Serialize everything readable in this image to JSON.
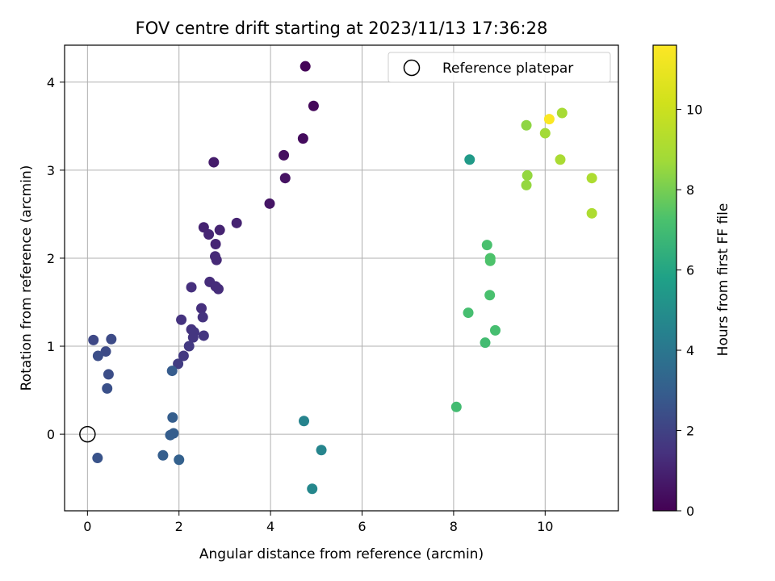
{
  "chart_data": {
    "type": "scatter",
    "title": "FOV centre drift starting at 2023/11/13 17:36:28",
    "xlabel": "Angular distance from reference (arcmin)",
    "ylabel": "Rotation from reference (arcmin)",
    "colorbar_label": "Hours from first FF file",
    "xlim": [
      -0.5,
      11.6
    ],
    "ylim": [
      -0.87,
      4.42
    ],
    "xticks": [
      0,
      2,
      4,
      6,
      8,
      10
    ],
    "yticks": [
      0,
      1,
      2,
      3,
      4
    ],
    "colorbar_range": [
      0,
      11.6
    ],
    "colorbar_ticks": [
      0,
      2,
      4,
      6,
      8,
      10
    ],
    "colormap": "viridis",
    "grid": true,
    "legend": {
      "label": "Reference platepar",
      "placement": "top-right"
    },
    "reference_point": {
      "x": 0,
      "y": 0
    },
    "points": [
      {
        "x": 4.76,
        "y": 4.18,
        "hours": 0.1
      },
      {
        "x": 4.94,
        "y": 3.73,
        "hours": 0.2
      },
      {
        "x": 4.71,
        "y": 3.36,
        "hours": 0.3
      },
      {
        "x": 4.29,
        "y": 3.17,
        "hours": 0.4
      },
      {
        "x": 4.32,
        "y": 2.91,
        "hours": 0.5
      },
      {
        "x": 3.98,
        "y": 2.62,
        "hours": 0.6
      },
      {
        "x": 2.76,
        "y": 3.09,
        "hours": 0.8
      },
      {
        "x": 3.26,
        "y": 2.4,
        "hours": 1.0
      },
      {
        "x": 2.54,
        "y": 2.35,
        "hours": 1.0
      },
      {
        "x": 2.89,
        "y": 2.32,
        "hours": 1.0
      },
      {
        "x": 2.65,
        "y": 2.27,
        "hours": 1.1
      },
      {
        "x": 2.8,
        "y": 2.16,
        "hours": 1.1
      },
      {
        "x": 2.79,
        "y": 2.02,
        "hours": 1.2
      },
      {
        "x": 2.82,
        "y": 1.98,
        "hours": 1.2
      },
      {
        "x": 2.67,
        "y": 1.73,
        "hours": 1.3
      },
      {
        "x": 2.8,
        "y": 1.68,
        "hours": 1.3
      },
      {
        "x": 2.86,
        "y": 1.65,
        "hours": 1.3
      },
      {
        "x": 2.27,
        "y": 1.67,
        "hours": 1.4
      },
      {
        "x": 2.49,
        "y": 1.43,
        "hours": 1.4
      },
      {
        "x": 2.52,
        "y": 1.33,
        "hours": 1.5
      },
      {
        "x": 2.05,
        "y": 1.3,
        "hours": 1.5
      },
      {
        "x": 2.27,
        "y": 1.19,
        "hours": 1.5
      },
      {
        "x": 2.33,
        "y": 1.16,
        "hours": 1.6
      },
      {
        "x": 2.54,
        "y": 1.12,
        "hours": 1.6
      },
      {
        "x": 2.31,
        "y": 1.1,
        "hours": 1.6
      },
      {
        "x": 2.22,
        "y": 1.0,
        "hours": 1.7
      },
      {
        "x": 2.1,
        "y": 0.89,
        "hours": 1.7
      },
      {
        "x": 1.98,
        "y": 0.8,
        "hours": 1.8
      },
      {
        "x": 0.13,
        "y": 1.07,
        "hours": 2.2
      },
      {
        "x": 0.52,
        "y": 1.08,
        "hours": 2.3
      },
      {
        "x": 0.4,
        "y": 0.94,
        "hours": 2.3
      },
      {
        "x": 0.23,
        "y": 0.89,
        "hours": 2.4
      },
      {
        "x": 0.46,
        "y": 0.68,
        "hours": 2.4
      },
      {
        "x": 0.43,
        "y": 0.52,
        "hours": 2.5
      },
      {
        "x": 0.22,
        "y": -0.27,
        "hours": 2.6
      },
      {
        "x": 1.85,
        "y": 0.72,
        "hours": 2.9
      },
      {
        "x": 1.86,
        "y": 0.19,
        "hours": 3.0
      },
      {
        "x": 1.88,
        "y": 0.01,
        "hours": 3.0
      },
      {
        "x": 1.81,
        "y": -0.01,
        "hours": 3.0
      },
      {
        "x": 1.65,
        "y": -0.24,
        "hours": 3.0
      },
      {
        "x": 2.0,
        "y": -0.29,
        "hours": 3.1
      },
      {
        "x": 4.73,
        "y": 0.15,
        "hours": 4.5
      },
      {
        "x": 5.11,
        "y": -0.18,
        "hours": 4.6
      },
      {
        "x": 4.91,
        "y": -0.62,
        "hours": 4.7
      },
      {
        "x": 8.35,
        "y": 3.12,
        "hours": 5.5
      },
      {
        "x": 8.06,
        "y": 0.31,
        "hours": 7.0
      },
      {
        "x": 8.69,
        "y": 1.04,
        "hours": 7.0
      },
      {
        "x": 8.32,
        "y": 1.38,
        "hours": 7.1
      },
      {
        "x": 8.91,
        "y": 1.18,
        "hours": 7.1
      },
      {
        "x": 8.79,
        "y": 1.58,
        "hours": 7.2
      },
      {
        "x": 8.73,
        "y": 2.15,
        "hours": 7.2
      },
      {
        "x": 8.8,
        "y": 2.0,
        "hours": 7.3
      },
      {
        "x": 8.8,
        "y": 1.97,
        "hours": 7.3
      },
      {
        "x": 9.59,
        "y": 3.51,
        "hours": 8.4
      },
      {
        "x": 9.61,
        "y": 2.94,
        "hours": 8.5
      },
      {
        "x": 9.59,
        "y": 2.83,
        "hours": 8.5
      },
      {
        "x": 10.0,
        "y": 3.42,
        "hours": 8.8
      },
      {
        "x": 10.37,
        "y": 3.65,
        "hours": 8.9
      },
      {
        "x": 10.33,
        "y": 3.12,
        "hours": 9.0
      },
      {
        "x": 11.02,
        "y": 2.91,
        "hours": 9.1
      },
      {
        "x": 11.02,
        "y": 2.51,
        "hours": 9.1
      },
      {
        "x": 10.09,
        "y": 3.58,
        "hours": 11.5
      }
    ]
  }
}
